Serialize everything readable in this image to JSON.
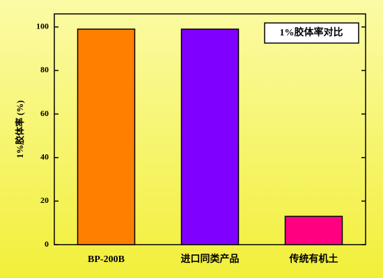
{
  "chart_data": {
    "type": "bar",
    "title": "1%胶体率对比",
    "y_label": "1%胶体率 (%)",
    "categories": [
      "BP-200B",
      "进口同类产品",
      "传统有机土"
    ],
    "values": [
      99,
      99,
      13
    ],
    "colors": [
      "#ff8000",
      "#8000ff",
      "#ff0080"
    ],
    "ylim": [
      0,
      106
    ],
    "yticks": [
      0,
      20,
      40,
      60,
      80,
      100
    ],
    "grid": false
  }
}
